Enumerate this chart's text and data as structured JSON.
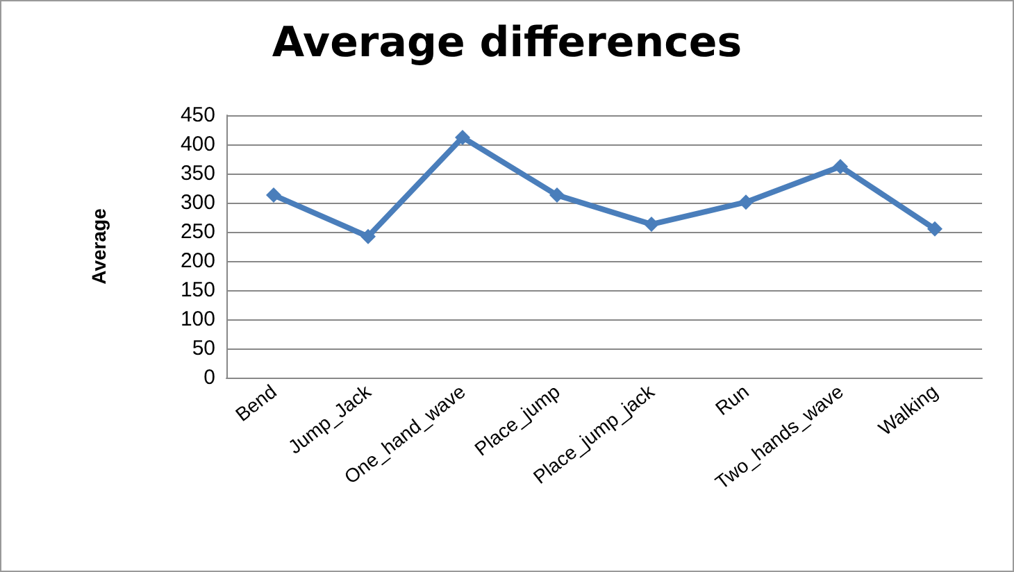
{
  "chart_data": {
    "type": "line",
    "title": "Average differences",
    "ylabel": "Average",
    "categories": [
      "Bend",
      "Jump_Jack",
      "One_hand_wave",
      "Place_jump",
      "Place_jump_jack",
      "Run",
      "Two_hands_wave",
      "Walking"
    ],
    "series": [
      {
        "color": "#4a7ebb",
        "values": [
          313,
          242,
          412,
          313,
          263,
          301,
          362,
          255
        ]
      }
    ],
    "ylim": [
      0,
      450
    ],
    "yticks": [
      0,
      50,
      100,
      150,
      200,
      250,
      300,
      350,
      400,
      450
    ],
    "grid": "y",
    "marker": "diamond",
    "line_style": "solid"
  }
}
